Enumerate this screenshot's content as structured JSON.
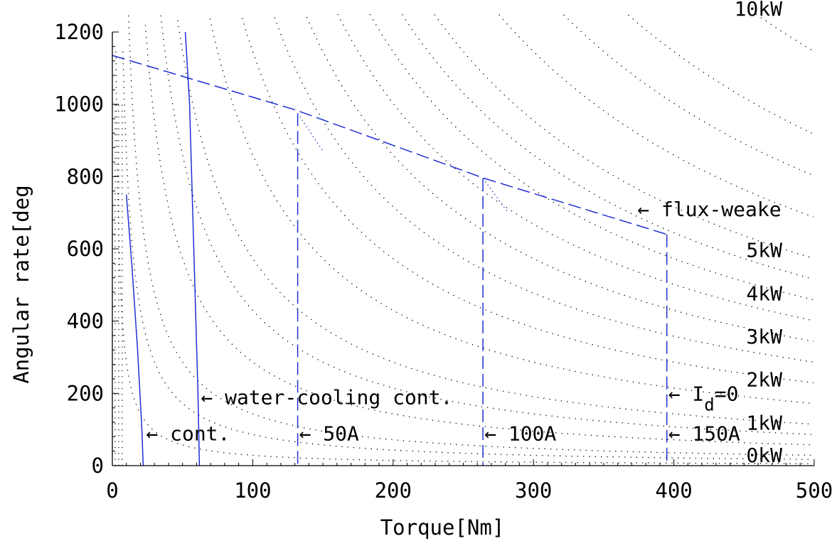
{
  "chart_data": {
    "type": "line",
    "title": "",
    "xlabel": "Torque[Nm]",
    "ylabel": "Angular rate[deg",
    "xlim": [
      0,
      500
    ],
    "ylim": [
      0,
      1200
    ],
    "xticks": [
      "0",
      "100",
      "200",
      "300",
      "400",
      "500"
    ],
    "yticks": [
      "0",
      "200",
      "400",
      "600",
      "800",
      "1000",
      "1200"
    ],
    "grid": false,
    "colors": {
      "curve": "#1f2fd4",
      "power": "#000000",
      "axis": "#000000"
    },
    "power_contours": {
      "labels": [
        "0kW",
        "1kW",
        "2kW",
        "3kW",
        "4kW",
        "5kW",
        "10kW"
      ],
      "kW": [
        0,
        1,
        2,
        3,
        4,
        5,
        10
      ]
    },
    "series": [
      {
        "style": "solid",
        "x": [
          10,
          14,
          18,
          21,
          22
        ],
        "y": [
          750,
          550,
          320,
          100,
          0
        ]
      },
      {
        "style": "solid",
        "x": [
          52,
          55,
          58,
          61,
          62
        ],
        "y": [
          1200,
          1000,
          600,
          200,
          0
        ]
      },
      {
        "style": "dashed",
        "x": [
          0,
          130,
          265,
          395
        ],
        "y": [
          1135,
          985,
          795,
          640
        ]
      },
      {
        "style": "dashed",
        "x": [
          132,
          132
        ],
        "y": [
          975,
          0
        ]
      },
      {
        "style": "dashed",
        "x": [
          264,
          264
        ],
        "y": [
          795,
          0
        ]
      },
      {
        "style": "dashed",
        "x": [
          395,
          395
        ],
        "y": [
          640,
          0
        ]
      }
    ],
    "annotations": [
      {
        "text": "← cont.",
        "x": 23,
        "y": 90
      },
      {
        "text": "← water-cooling cont.",
        "x": 62,
        "y": 190
      },
      {
        "text": "← 50A",
        "x": 132,
        "y": 90
      },
      {
        "text": "← 100A",
        "x": 264,
        "y": 90
      },
      {
        "text": "← 150A",
        "x": 395,
        "y": 90
      },
      {
        "text": "← I",
        "sub": "d",
        "tail": "=0",
        "x": 395,
        "y": 200
      },
      {
        "text": "← flux-weake",
        "x": 373,
        "y": 710
      }
    ]
  }
}
